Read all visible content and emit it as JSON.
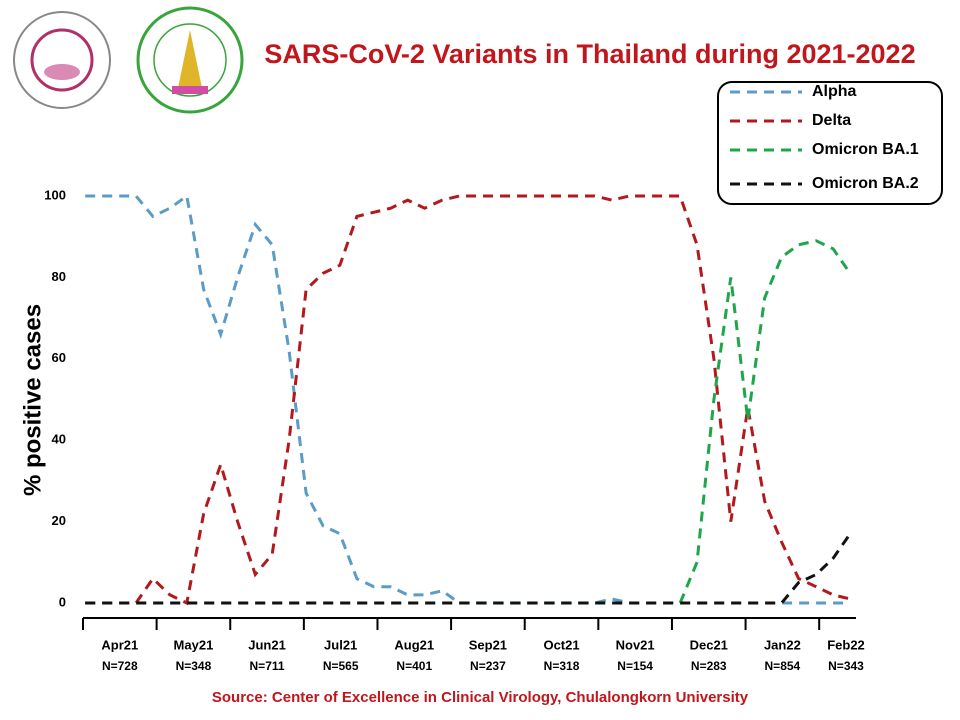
{
  "chart_data": {
    "type": "line",
    "title": "SARS-CoV-2 Variants in Thailand during 2021-2022",
    "y_label": "% positive cases",
    "source": "Source: Center of Excellence in Clinical Virology, Chulalongkorn University",
    "categories": [
      "Apr21",
      "May21",
      "Jun21",
      "Jul21",
      "Aug21",
      "Sep21",
      "Oct21",
      "Nov21",
      "Dec21",
      "Jan22",
      "Feb22"
    ],
    "sample_sizes": [
      "N=728",
      "N=348",
      "N=711",
      "N=565",
      "N=401",
      "N=237",
      "N=318",
      "N=154",
      "N=283",
      "N=854",
      "N=343"
    ],
    "x": [
      0.03,
      0.26,
      0.49,
      0.72,
      0.95,
      1.18,
      1.41,
      1.64,
      1.87,
      2.1,
      2.34,
      2.57,
      2.8,
      3.03,
      3.26,
      3.49,
      3.72,
      3.95,
      4.18,
      4.41,
      4.64,
      4.88,
      5.11,
      5.34,
      5.57,
      5.8,
      6.03,
      6.26,
      6.49,
      6.72,
      6.95,
      7.18,
      7.42,
      7.65,
      7.88,
      8.11,
      8.34,
      8.57,
      8.8,
      9.03,
      9.26,
      9.49,
      9.72,
      9.96,
      10.19,
      10.42
    ],
    "xlim": [
      0,
      10.5
    ],
    "ylim": [
      0,
      100
    ],
    "yticks": [
      0,
      20,
      40,
      60,
      80,
      100
    ],
    "grid": false,
    "legend_position": "upper right",
    "series": [
      {
        "name": "Alpha",
        "color": "#5b9bc8",
        "values": [
          100,
          100,
          100,
          100,
          95,
          97,
          100,
          77,
          66,
          80,
          93,
          88,
          62,
          27,
          19,
          17,
          6,
          4,
          4,
          2,
          2,
          3,
          0,
          0,
          0,
          0,
          0,
          0,
          0,
          0,
          0,
          1,
          0,
          0,
          0,
          0,
          0,
          0,
          0,
          0,
          0,
          0,
          0,
          0,
          0,
          0
        ]
      },
      {
        "name": "Delta",
        "color": "#b3191c",
        "values": [
          0,
          0,
          0,
          0,
          6,
          2,
          0,
          22,
          34,
          20,
          7,
          12,
          40,
          77,
          81,
          83,
          95,
          96,
          97,
          99,
          97,
          99,
          100,
          100,
          100,
          100,
          100,
          100,
          100,
          100,
          100,
          99,
          100,
          100,
          100,
          100,
          88,
          60,
          20,
          48,
          25,
          15,
          6,
          4,
          2,
          1
        ]
      },
      {
        "name": "Omicron BA.1",
        "color": "#1fa64a",
        "values": [
          0,
          0,
          0,
          0,
          0,
          0,
          0,
          0,
          0,
          0,
          0,
          0,
          0,
          0,
          0,
          0,
          0,
          0,
          0,
          0,
          0,
          0,
          0,
          0,
          0,
          0,
          0,
          0,
          0,
          0,
          0,
          0,
          0,
          0,
          0,
          0,
          10,
          50,
          80,
          45,
          75,
          85,
          88,
          89,
          87,
          81
        ]
      },
      {
        "name": "Omicron BA.2",
        "color": "#111111",
        "values": [
          0,
          0,
          0,
          0,
          0,
          0,
          0,
          0,
          0,
          0,
          0,
          0,
          0,
          0,
          0,
          0,
          0,
          0,
          0,
          0,
          0,
          0,
          0,
          0,
          0,
          0,
          0,
          0,
          0,
          0,
          0,
          0,
          0,
          0,
          0,
          0,
          0,
          0,
          0,
          0,
          0,
          0,
          5,
          7,
          11,
          17
        ]
      }
    ]
  }
}
